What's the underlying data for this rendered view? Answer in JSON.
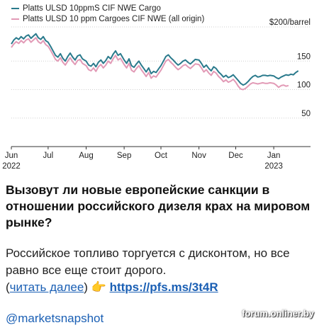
{
  "chart_data": {
    "type": "line",
    "ylabel": "$200/barrel",
    "ylim": [
      0,
      210
    ],
    "yticks": [
      50,
      100,
      150
    ],
    "grid": true,
    "legend_placement": "top-left",
    "x_start": "2022-06-01",
    "x_end": "2023-01-31",
    "x_ticks": [
      {
        "label": "Jun",
        "sub": "2022",
        "date": "2022-06-01"
      },
      {
        "label": "Jul",
        "sub": "",
        "date": "2022-07-01"
      },
      {
        "label": "Aug",
        "sub": "",
        "date": "2022-08-01"
      },
      {
        "label": "Sep",
        "sub": "",
        "date": "2022-09-01"
      },
      {
        "label": "Oct",
        "sub": "",
        "date": "2022-10-01"
      },
      {
        "label": "Nov",
        "sub": "",
        "date": "2022-11-01"
      },
      {
        "label": "Dec",
        "sub": "",
        "date": "2022-12-01"
      },
      {
        "label": "Jan",
        "sub": "2023",
        "date": "2023-01-01"
      }
    ],
    "series": [
      {
        "name": "Platts ULSD 10ppmS CIF NWE Cargo",
        "color": "#2a7a8c",
        "points": [
          [
            "2022-06-01",
            180
          ],
          [
            "2022-06-03",
            187
          ],
          [
            "2022-06-05",
            191
          ],
          [
            "2022-06-07",
            188
          ],
          [
            "2022-06-09",
            193
          ],
          [
            "2022-06-11",
            189
          ],
          [
            "2022-06-13",
            194
          ],
          [
            "2022-06-15",
            196
          ],
          [
            "2022-06-17",
            190
          ],
          [
            "2022-06-19",
            194
          ],
          [
            "2022-06-21",
            198
          ],
          [
            "2022-06-23",
            191
          ],
          [
            "2022-06-25",
            188
          ],
          [
            "2022-06-27",
            193
          ],
          [
            "2022-06-29",
            186
          ],
          [
            "2022-07-01",
            183
          ],
          [
            "2022-07-03",
            176
          ],
          [
            "2022-07-05",
            168
          ],
          [
            "2022-07-07",
            160
          ],
          [
            "2022-07-09",
            157
          ],
          [
            "2022-07-11",
            163
          ],
          [
            "2022-07-13",
            155
          ],
          [
            "2022-07-15",
            150
          ],
          [
            "2022-07-17",
            158
          ],
          [
            "2022-07-19",
            164
          ],
          [
            "2022-07-21",
            157
          ],
          [
            "2022-07-23",
            152
          ],
          [
            "2022-07-25",
            159
          ],
          [
            "2022-07-27",
            161
          ],
          [
            "2022-07-29",
            154
          ],
          [
            "2022-08-01",
            150
          ],
          [
            "2022-08-03",
            143
          ],
          [
            "2022-08-05",
            141
          ],
          [
            "2022-08-07",
            146
          ],
          [
            "2022-08-09",
            140
          ],
          [
            "2022-08-11",
            148
          ],
          [
            "2022-08-13",
            152
          ],
          [
            "2022-08-15",
            146
          ],
          [
            "2022-08-17",
            151
          ],
          [
            "2022-08-19",
            158
          ],
          [
            "2022-08-21",
            154
          ],
          [
            "2022-08-23",
            162
          ],
          [
            "2022-08-25",
            168
          ],
          [
            "2022-08-27",
            160
          ],
          [
            "2022-08-29",
            163
          ],
          [
            "2022-09-01",
            152
          ],
          [
            "2022-09-03",
            146
          ],
          [
            "2022-09-05",
            154
          ],
          [
            "2022-09-07",
            142
          ],
          [
            "2022-09-09",
            139
          ],
          [
            "2022-09-11",
            145
          ],
          [
            "2022-09-13",
            150
          ],
          [
            "2022-09-15",
            143
          ],
          [
            "2022-09-17",
            137
          ],
          [
            "2022-09-19",
            131
          ],
          [
            "2022-09-21",
            138
          ],
          [
            "2022-09-23",
            128
          ],
          [
            "2022-09-25",
            132
          ],
          [
            "2022-09-27",
            130
          ],
          [
            "2022-09-29",
            136
          ],
          [
            "2022-10-01",
            142
          ],
          [
            "2022-10-03",
            150
          ],
          [
            "2022-10-05",
            158
          ],
          [
            "2022-10-07",
            161
          ],
          [
            "2022-10-09",
            156
          ],
          [
            "2022-10-11",
            152
          ],
          [
            "2022-10-13",
            147
          ],
          [
            "2022-10-15",
            143
          ],
          [
            "2022-10-17",
            146
          ],
          [
            "2022-10-19",
            150
          ],
          [
            "2022-10-21",
            152
          ],
          [
            "2022-10-23",
            148
          ],
          [
            "2022-10-25",
            145
          ],
          [
            "2022-10-27",
            149
          ],
          [
            "2022-10-29",
            153
          ],
          [
            "2022-11-01",
            152
          ],
          [
            "2022-11-03",
            146
          ],
          [
            "2022-11-05",
            139
          ],
          [
            "2022-11-07",
            143
          ],
          [
            "2022-11-09",
            137
          ],
          [
            "2022-11-11",
            133
          ],
          [
            "2022-11-13",
            140
          ],
          [
            "2022-11-15",
            137
          ],
          [
            "2022-11-17",
            131
          ],
          [
            "2022-11-19",
            127
          ],
          [
            "2022-11-21",
            122
          ],
          [
            "2022-11-23",
            125
          ],
          [
            "2022-11-25",
            121
          ],
          [
            "2022-11-27",
            123
          ],
          [
            "2022-11-29",
            126
          ],
          [
            "2022-12-01",
            121
          ],
          [
            "2022-12-03",
            116
          ],
          [
            "2022-12-05",
            111
          ],
          [
            "2022-12-07",
            108
          ],
          [
            "2022-12-09",
            110
          ],
          [
            "2022-12-11",
            114
          ],
          [
            "2022-12-13",
            119
          ],
          [
            "2022-12-15",
            123
          ],
          [
            "2022-12-17",
            125
          ],
          [
            "2022-12-19",
            122
          ],
          [
            "2022-12-21",
            123
          ],
          [
            "2022-12-23",
            125
          ],
          [
            "2022-12-25",
            125
          ],
          [
            "2022-12-27",
            124
          ],
          [
            "2022-12-29",
            125
          ],
          [
            "2023-01-01",
            124
          ],
          [
            "2023-01-03",
            121
          ],
          [
            "2023-01-05",
            119
          ],
          [
            "2023-01-07",
            122
          ],
          [
            "2023-01-09",
            124
          ],
          [
            "2023-01-11",
            126
          ],
          [
            "2023-01-13",
            125
          ],
          [
            "2023-01-15",
            127
          ],
          [
            "2023-01-17",
            126
          ],
          [
            "2023-01-19",
            130
          ],
          [
            "2023-01-21",
            133
          ]
        ]
      },
      {
        "name": "Platts ULSD 10 ppm Cargoes CIF NWE (all origin)",
        "color": "#e29ab6",
        "points": [
          [
            "2022-06-01",
            174
          ],
          [
            "2022-06-03",
            180
          ],
          [
            "2022-06-05",
            184
          ],
          [
            "2022-06-07",
            181
          ],
          [
            "2022-06-09",
            186
          ],
          [
            "2022-06-11",
            182
          ],
          [
            "2022-06-13",
            187
          ],
          [
            "2022-06-15",
            189
          ],
          [
            "2022-06-17",
            183
          ],
          [
            "2022-06-19",
            187
          ],
          [
            "2022-06-21",
            191
          ],
          [
            "2022-06-23",
            184
          ],
          [
            "2022-06-25",
            181
          ],
          [
            "2022-06-27",
            186
          ],
          [
            "2022-06-29",
            179
          ],
          [
            "2022-07-01",
            176
          ],
          [
            "2022-07-03",
            169
          ],
          [
            "2022-07-05",
            161
          ],
          [
            "2022-07-07",
            153
          ],
          [
            "2022-07-09",
            150
          ],
          [
            "2022-07-11",
            156
          ],
          [
            "2022-07-13",
            148
          ],
          [
            "2022-07-15",
            143
          ],
          [
            "2022-07-17",
            150
          ],
          [
            "2022-07-19",
            156
          ],
          [
            "2022-07-21",
            149
          ],
          [
            "2022-07-23",
            144
          ],
          [
            "2022-07-25",
            151
          ],
          [
            "2022-07-27",
            153
          ],
          [
            "2022-07-29",
            146
          ],
          [
            "2022-08-01",
            142
          ],
          [
            "2022-08-03",
            135
          ],
          [
            "2022-08-05",
            133
          ],
          [
            "2022-08-07",
            138
          ],
          [
            "2022-08-09",
            132
          ],
          [
            "2022-08-11",
            140
          ],
          [
            "2022-08-13",
            144
          ],
          [
            "2022-08-15",
            138
          ],
          [
            "2022-08-17",
            143
          ],
          [
            "2022-08-19",
            150
          ],
          [
            "2022-08-21",
            146
          ],
          [
            "2022-08-23",
            154
          ],
          [
            "2022-08-25",
            160
          ],
          [
            "2022-08-27",
            152
          ],
          [
            "2022-08-29",
            155
          ],
          [
            "2022-09-01",
            144
          ],
          [
            "2022-09-03",
            138
          ],
          [
            "2022-09-05",
            146
          ],
          [
            "2022-09-07",
            134
          ],
          [
            "2022-09-09",
            131
          ],
          [
            "2022-09-11",
            137
          ],
          [
            "2022-09-13",
            142
          ],
          [
            "2022-09-15",
            135
          ],
          [
            "2022-09-17",
            129
          ],
          [
            "2022-09-19",
            123
          ],
          [
            "2022-09-21",
            130
          ],
          [
            "2022-09-23",
            120
          ],
          [
            "2022-09-25",
            124
          ],
          [
            "2022-09-27",
            122
          ],
          [
            "2022-09-29",
            128
          ],
          [
            "2022-10-01",
            134
          ],
          [
            "2022-10-03",
            142
          ],
          [
            "2022-10-05",
            150
          ],
          [
            "2022-10-07",
            153
          ],
          [
            "2022-10-09",
            148
          ],
          [
            "2022-10-11",
            144
          ],
          [
            "2022-10-13",
            139
          ],
          [
            "2022-10-15",
            135
          ],
          [
            "2022-10-17",
            138
          ],
          [
            "2022-10-19",
            142
          ],
          [
            "2022-10-21",
            144
          ],
          [
            "2022-10-23",
            140
          ],
          [
            "2022-10-25",
            137
          ],
          [
            "2022-10-27",
            141
          ],
          [
            "2022-10-29",
            145
          ],
          [
            "2022-11-01",
            144
          ],
          [
            "2022-11-03",
            138
          ],
          [
            "2022-11-05",
            131
          ],
          [
            "2022-11-07",
            135
          ],
          [
            "2022-11-09",
            129
          ],
          [
            "2022-11-11",
            125
          ],
          [
            "2022-11-13",
            132
          ],
          [
            "2022-11-15",
            129
          ],
          [
            "2022-11-17",
            123
          ],
          [
            "2022-11-19",
            119
          ],
          [
            "2022-11-21",
            114
          ],
          [
            "2022-11-23",
            117
          ],
          [
            "2022-11-25",
            113
          ],
          [
            "2022-11-27",
            115
          ],
          [
            "2022-11-29",
            118
          ],
          [
            "2022-12-01",
            113
          ],
          [
            "2022-12-03",
            106
          ],
          [
            "2022-12-05",
            101
          ],
          [
            "2022-12-07",
            100
          ],
          [
            "2022-12-09",
            102
          ],
          [
            "2022-12-11",
            106
          ],
          [
            "2022-12-13",
            110
          ],
          [
            "2022-12-15",
            112
          ],
          [
            "2022-12-17",
            111
          ],
          [
            "2022-12-19",
            110
          ],
          [
            "2022-12-21",
            111
          ],
          [
            "2022-12-23",
            112
          ],
          [
            "2022-12-25",
            111
          ],
          [
            "2022-12-27",
            111
          ],
          [
            "2022-12-29",
            112
          ],
          [
            "2023-01-01",
            111
          ],
          [
            "2023-01-03",
            108
          ],
          [
            "2023-01-05",
            104
          ],
          [
            "2023-01-07",
            107
          ],
          [
            "2023-01-09",
            108
          ],
          [
            "2023-01-11",
            106
          ],
          [
            "2023-01-13",
            107
          ]
        ]
      }
    ]
  },
  "post": {
    "headline": "Вызовут ли новые европейские санкции в отношении российского дизеля крах на мировом рынке?",
    "body_line1": "Российское топливо торгуется с дисконтом, но все равно все еще стоит дорого.",
    "read_more_open": "(",
    "read_more_text": "читать далее",
    "read_more_close": ")",
    "pointing_emoji": "👉",
    "link_url": "https://pfs.ms/3t4R",
    "handle": "@marketsnapshot"
  },
  "watermark": "forum.onliner.by"
}
